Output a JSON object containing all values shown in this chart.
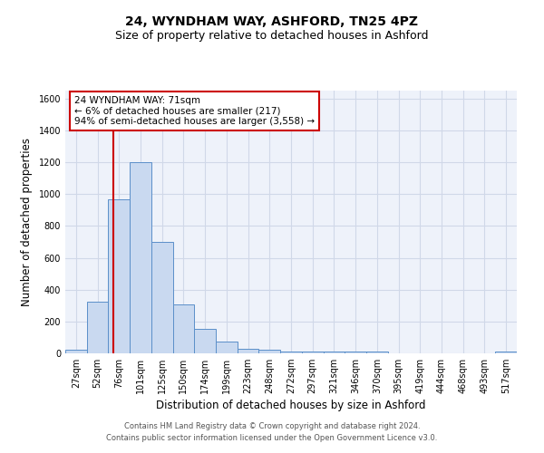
{
  "title": "24, WYNDHAM WAY, ASHFORD, TN25 4PZ",
  "subtitle": "Size of property relative to detached houses in Ashford",
  "xlabel": "Distribution of detached houses by size in Ashford",
  "ylabel": "Number of detached properties",
  "footer_line1": "Contains HM Land Registry data © Crown copyright and database right 2024.",
  "footer_line2": "Contains public sector information licensed under the Open Government Licence v3.0.",
  "categories": [
    "27sqm",
    "52sqm",
    "76sqm",
    "101sqm",
    "125sqm",
    "150sqm",
    "174sqm",
    "199sqm",
    "223sqm",
    "248sqm",
    "272sqm",
    "297sqm",
    "321sqm",
    "346sqm",
    "370sqm",
    "395sqm",
    "419sqm",
    "444sqm",
    "468sqm",
    "493sqm",
    "517sqm"
  ],
  "values": [
    25,
    325,
    970,
    1200,
    700,
    305,
    155,
    75,
    30,
    20,
    13,
    13,
    10,
    13,
    13,
    0,
    0,
    0,
    0,
    0,
    13
  ],
  "bar_color": "#c9d9f0",
  "bar_edge_color": "#5b8fc9",
  "annotation_box_text": "24 WYNDHAM WAY: 71sqm\n← 6% of detached houses are smaller (217)\n94% of semi-detached houses are larger (3,558) →",
  "annotation_box_color": "#ffffff",
  "annotation_box_edge_color": "#cc0000",
  "vline_x_index": 1.72,
  "vline_color": "#cc0000",
  "ylim": [
    0,
    1650
  ],
  "yticks": [
    0,
    200,
    400,
    600,
    800,
    1000,
    1200,
    1400,
    1600
  ],
  "grid_color": "#d0d8e8",
  "bg_color": "#eef2fa",
  "title_fontsize": 10,
  "subtitle_fontsize": 9,
  "xlabel_fontsize": 8.5,
  "ylabel_fontsize": 8.5,
  "tick_fontsize": 7,
  "annot_fontsize": 7.5,
  "footer_fontsize": 6
}
